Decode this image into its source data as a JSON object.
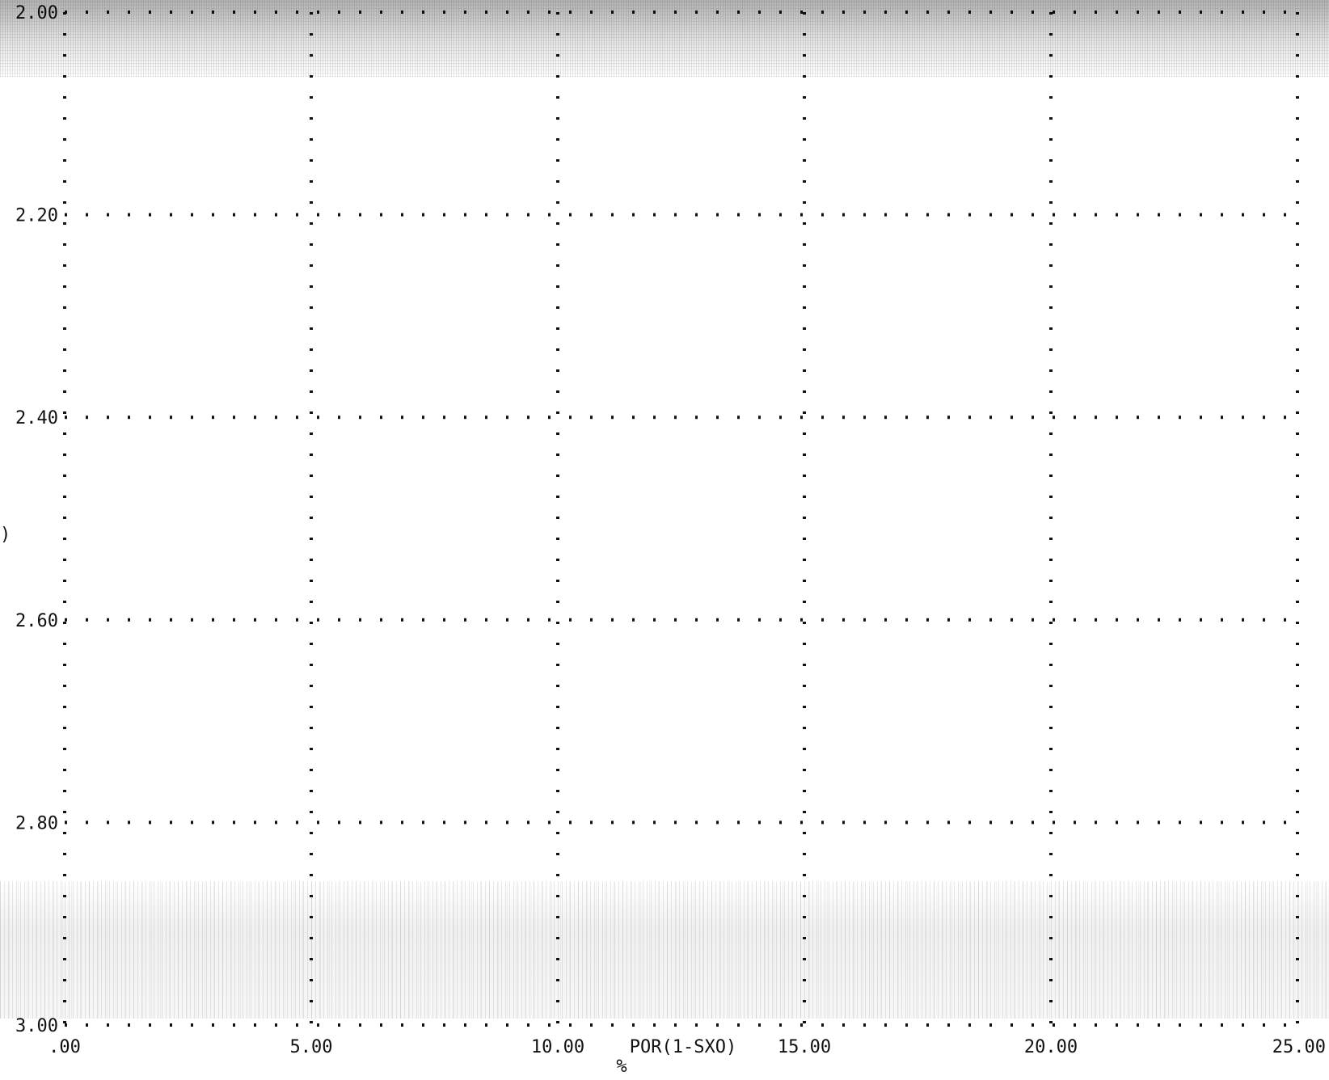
{
  "chart_data": {
    "type": "line",
    "title": "",
    "xlabel": "POR(1-SXO)",
    "xunit": "%",
    "ylabel": "",
    "series": [],
    "xlim": [
      0,
      25
    ],
    "ylim": [
      2.0,
      3.0
    ],
    "y_inverted": true,
    "grid": true,
    "grid_style": "dotted",
    "x_ticks": [
      0,
      5,
      10,
      15,
      20,
      25
    ],
    "x_tick_labels": [
      ".00",
      "5.00",
      "10.00",
      "15.00",
      "20.00",
      "25.00"
    ],
    "y_ticks": [
      2.0,
      2.2,
      2.4,
      2.6,
      2.8,
      3.0
    ],
    "y_tick_labels": [
      "2.00",
      "2.20",
      "2.40",
      "2.60",
      "2.80",
      "3.00"
    ],
    "axis_marker": ")",
    "colors": {
      "ink": "#111111",
      "background": "#ffffff"
    }
  }
}
